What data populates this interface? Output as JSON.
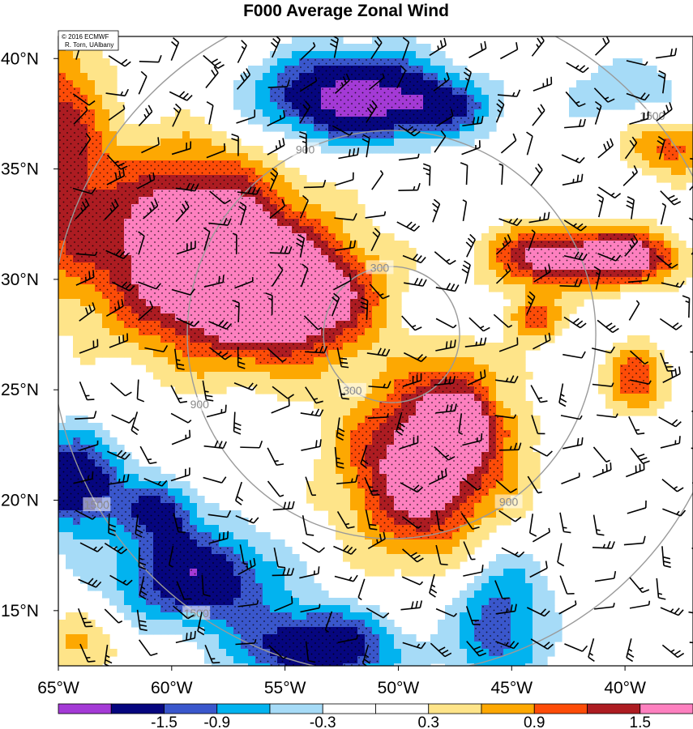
{
  "chart_data": {
    "type": "heatmap",
    "title": "F000 Average Zonal Wind",
    "credit_lines": [
      "© 2016 ECMWF",
      "R. Torn, UAlbany"
    ],
    "x_ticks": [
      {
        "lon": -65,
        "label": "65°W"
      },
      {
        "lon": -60,
        "label": "60°W"
      },
      {
        "lon": -55,
        "label": "55°W"
      },
      {
        "lon": -50,
        "label": "50°W"
      },
      {
        "lon": -45,
        "label": "45°W"
      },
      {
        "lon": -40,
        "label": "40°W"
      }
    ],
    "y_ticks": [
      {
        "lat": 40,
        "label": "40°N"
      },
      {
        "lat": 35,
        "label": "35°N"
      },
      {
        "lat": 30,
        "label": "30°N"
      },
      {
        "lat": 25,
        "label": "25°N"
      },
      {
        "lat": 20,
        "label": "20°N"
      },
      {
        "lat": 15,
        "label": "15°N"
      }
    ],
    "xlim": [
      -65,
      -37
    ],
    "ylim": [
      12.5,
      41
    ],
    "colorbar": {
      "colors": [
        "#a43ad6",
        "#06067f",
        "#3a57cc",
        "#02b3ef",
        "#a6dbf7",
        "#ffffff",
        "#ffffff",
        "#fee489",
        "#fda802",
        "#fd4c08",
        "#ad1c22",
        "#fd80bf"
      ],
      "labels": [
        {
          "boundary": 2,
          "text": "-1.5"
        },
        {
          "boundary": 3,
          "text": "-0.9"
        },
        {
          "boundary": 5,
          "text": "-0.3"
        },
        {
          "boundary": 7,
          "text": "0.3"
        },
        {
          "boundary": 9,
          "text": "0.9"
        },
        {
          "boundary": 11,
          "text": "1.5"
        }
      ]
    },
    "range_rings": {
      "center": {
        "lon": -50.3,
        "lat": 27.5
      },
      "rings": [
        {
          "value": 300,
          "label": "300"
        },
        {
          "value": 900,
          "label": "900"
        },
        {
          "value": 1500,
          "label": "1500"
        }
      ]
    },
    "contour_levels": [
      -1.5,
      -0.9,
      -0.3,
      0.3,
      0.9,
      1.5
    ],
    "field_blobs": [
      {
        "lon": -59,
        "lat": 31.5,
        "amp": 2.3,
        "sx": 3.2,
        "sy": 3.0
      },
      {
        "lon": -55.5,
        "lat": 29.0,
        "amp": 1.5,
        "sx": 2.5,
        "sy": 2.0
      },
      {
        "lon": -53,
        "lat": 29.5,
        "amp": 0.8,
        "sx": 2.0,
        "sy": 1.8
      },
      {
        "lon": -48.8,
        "lat": 21.5,
        "amp": 2.0,
        "sx": 2.5,
        "sy": 2.8
      },
      {
        "lon": -46.8,
        "lat": 24.2,
        "amp": 1.0,
        "sx": 1.5,
        "sy": 1.5
      },
      {
        "lon": -43,
        "lat": 31.0,
        "amp": 1.7,
        "sx": 2.2,
        "sy": 1.0
      },
      {
        "lon": -44,
        "lat": 28.2,
        "amp": 1.2,
        "sx": 0.8,
        "sy": 0.7
      },
      {
        "lon": -39.5,
        "lat": 31.0,
        "amp": 1.3,
        "sx": 1.6,
        "sy": 0.9
      },
      {
        "lon": -39.5,
        "lat": 25.5,
        "amp": 1.1,
        "sx": 1.0,
        "sy": 1.2
      },
      {
        "lon": -65,
        "lat": 36.0,
        "amp": 1.3,
        "sx": 1.5,
        "sy": 4.0
      },
      {
        "lon": -38,
        "lat": 36.0,
        "amp": 1.0,
        "sx": 1.5,
        "sy": 1.0
      },
      {
        "lon": -64,
        "lat": 13.5,
        "amp": 0.6,
        "sx": 1.5,
        "sy": 1.2
      },
      {
        "lon": -52,
        "lat": 38.2,
        "amp": -2.1,
        "sx": 3.0,
        "sy": 1.4
      },
      {
        "lon": -48,
        "lat": 37.8,
        "amp": -0.8,
        "sx": 1.5,
        "sy": 0.8
      },
      {
        "lon": -64.3,
        "lat": 20.8,
        "amp": -1.8,
        "sx": 1.5,
        "sy": 1.5
      },
      {
        "lon": -59,
        "lat": 16.5,
        "amp": -1.7,
        "sx": 2.5,
        "sy": 1.5
      },
      {
        "lon": -53.5,
        "lat": 13.3,
        "amp": -1.7,
        "sx": 2.5,
        "sy": 1.3
      },
      {
        "lon": -45.5,
        "lat": 14.5,
        "amp": -1.1,
        "sx": 1.5,
        "sy": 2.5
      },
      {
        "lon": -40,
        "lat": 38.5,
        "amp": -0.6,
        "sx": 2.0,
        "sy": 1.0
      },
      {
        "lon": -45.5,
        "lat": 24.7,
        "amp": -0.6,
        "sx": 0.8,
        "sy": 0.7
      },
      {
        "lon": -60.5,
        "lat": 19.5,
        "amp": -1.2,
        "sx": 1.2,
        "sy": 1.0
      }
    ],
    "wind_barbs_note": "wind barbs drawn on a regular grid across the map"
  }
}
